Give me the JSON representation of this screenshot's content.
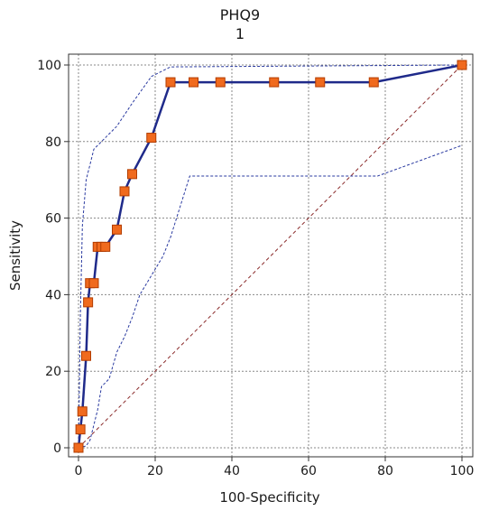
{
  "chart_data": {
    "type": "line",
    "title": "PHQ9",
    "subtitle": "1",
    "xlabel": "100-Specificity",
    "ylabel": "Sensitivity",
    "xlim": [
      0,
      100
    ],
    "ylim": [
      0,
      100
    ],
    "xticks": [
      0,
      20,
      40,
      60,
      80,
      100
    ],
    "yticks": [
      0,
      20,
      40,
      60,
      80,
      100
    ],
    "grid": true,
    "colors": {
      "roc_line": "#1f2a8a",
      "marker_fill": "#f06a1e",
      "marker_stroke": "#b23c00",
      "ci_band": "#2a3aa0",
      "diagonal": "#8a2a2a",
      "grid": "#888888"
    },
    "series": [
      {
        "style": "solid",
        "markers": true,
        "x": [
          0,
          0.5,
          1,
          2,
          2.5,
          3,
          4,
          5,
          6,
          7,
          10,
          12,
          14,
          19,
          24,
          30,
          37,
          51,
          63,
          77,
          100
        ],
        "y": [
          0,
          4.8,
          9.5,
          24,
          38,
          43,
          43,
          52.5,
          52.5,
          52.5,
          57,
          67,
          71.5,
          81,
          95.5,
          95.5,
          95.5,
          95.5,
          95.5,
          95.5,
          100
        ]
      },
      {
        "style": "dotted",
        "markers": false,
        "x": [
          0,
          0.5,
          1,
          2,
          3,
          4,
          6,
          10,
          14,
          19,
          24,
          100
        ],
        "y": [
          0,
          35,
          58,
          70,
          74,
          78,
          80,
          84,
          90,
          97,
          99.5,
          100
        ]
      },
      {
        "style": "dotted",
        "markers": false,
        "x": [
          0,
          2,
          3,
          5,
          6,
          8,
          10,
          12,
          14,
          16,
          19,
          22,
          24,
          29,
          78,
          100
        ],
        "y": [
          0,
          0.5,
          2,
          10,
          16,
          18,
          25,
          29,
          34,
          40,
          45,
          50,
          55,
          71,
          71,
          79
        ]
      },
      {
        "style": "dashed",
        "markers": false,
        "x": [
          0,
          100
        ],
        "y": [
          0,
          100
        ]
      }
    ]
  }
}
